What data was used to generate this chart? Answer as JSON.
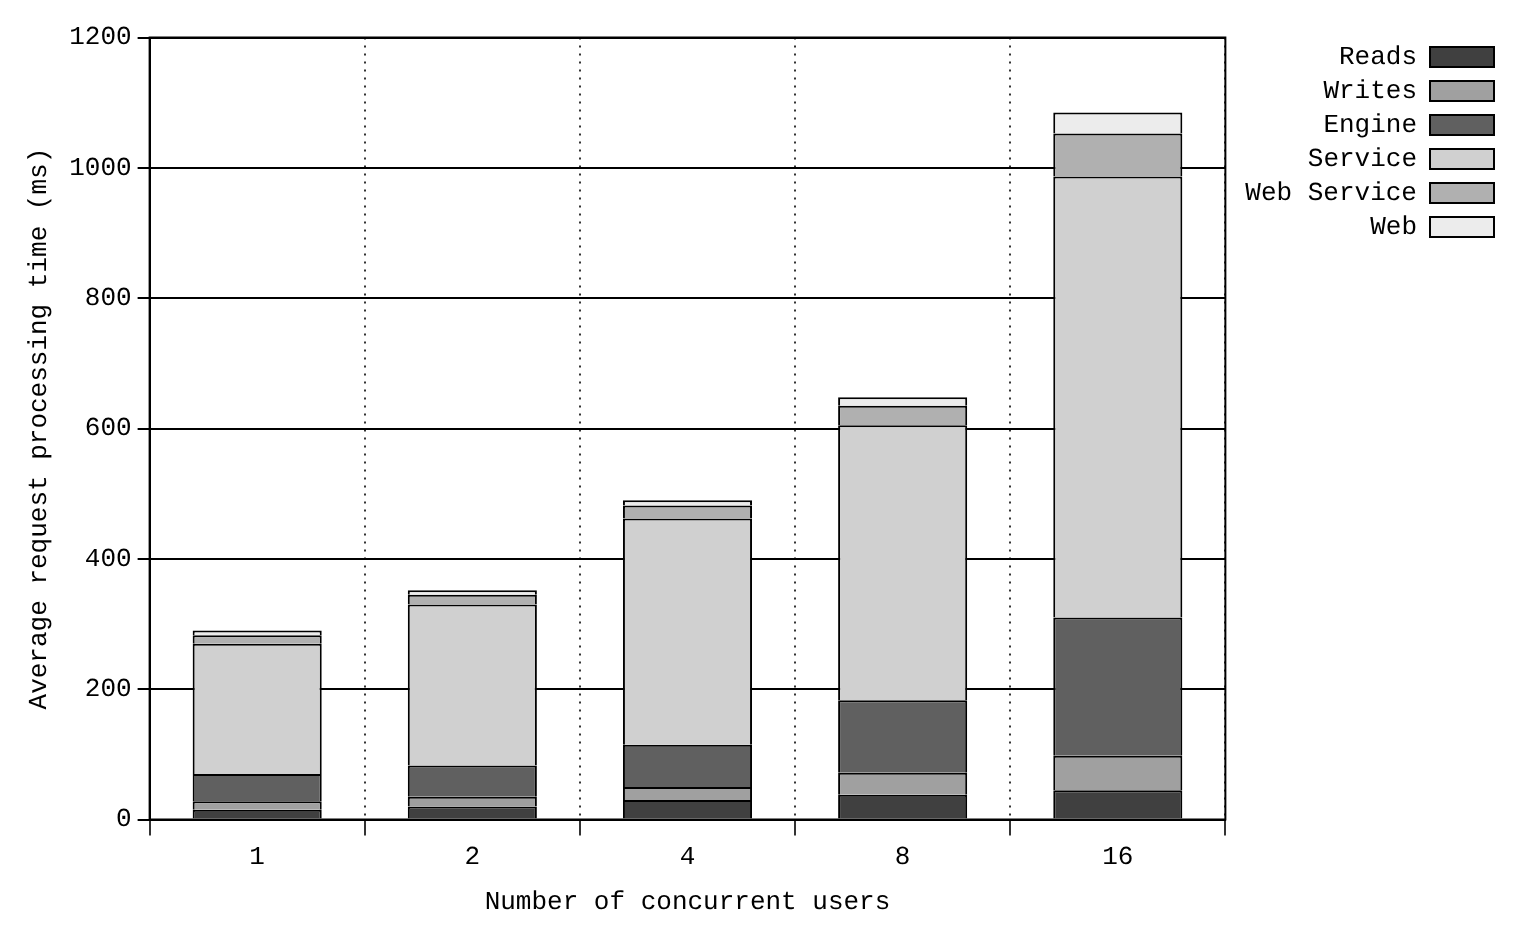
{
  "chart_data": {
    "type": "bar",
    "stacked": true,
    "xlabel": "Number of concurrent users",
    "ylabel": "Average request processing time (ms)",
    "categories": [
      "1",
      "2",
      "4",
      "8",
      "16"
    ],
    "ylim": [
      0,
      1200
    ],
    "yticks": [
      0,
      200,
      400,
      600,
      800,
      1000,
      1200
    ],
    "grid": true,
    "legend": "top right",
    "series": [
      {
        "name": "Reads",
        "color": "#404040",
        "values": [
          15,
          20,
          30,
          38,
          45
        ]
      },
      {
        "name": "Writes",
        "color": "#a0a0a0",
        "values": [
          13,
          15,
          20,
          34,
          53
        ]
      },
      {
        "name": "Engine",
        "color": "#606060",
        "values": [
          42,
          48,
          65,
          111,
          212
        ]
      },
      {
        "name": "Service",
        "color": "#d0d0d0",
        "values": [
          200,
          247,
          347,
          422,
          677
        ]
      },
      {
        "name": "Web Service",
        "color": "#b0b0b0",
        "values": [
          13,
          15,
          20,
          30,
          66
        ]
      },
      {
        "name": "Web",
        "color": "#ececec",
        "values": [
          7,
          7,
          8,
          13,
          32
        ]
      }
    ]
  }
}
